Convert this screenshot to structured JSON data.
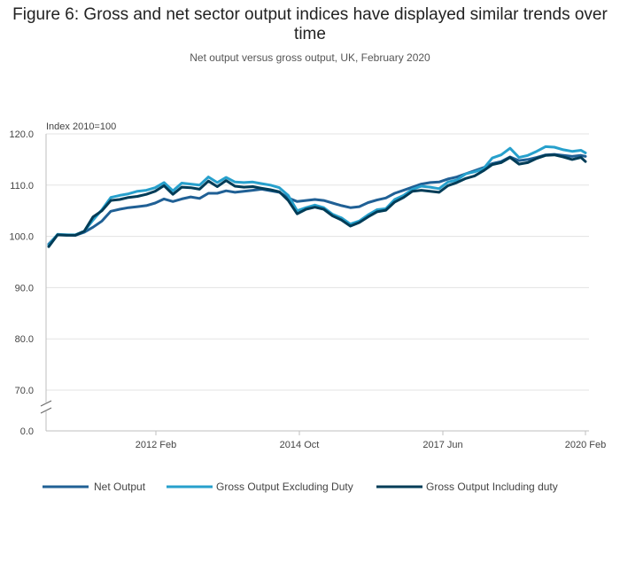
{
  "title": "Figure 6: Gross and net sector output indices have displayed similar trends over time",
  "subtitle": "Net output versus gross output, UK, February 2020",
  "chart_data": {
    "type": "line",
    "ylabel": "Index 2010=100",
    "ylim": [
      0,
      120
    ],
    "y_ticks": [
      "120.0",
      "110.0",
      "100.0",
      "90.0",
      "80.0",
      "70.0",
      "0.0"
    ],
    "y_axis_break": true,
    "x_ticks": [
      "2012 Feb",
      "2014 Oct",
      "2017 Jun",
      "2020 Feb"
    ],
    "grid": true,
    "legend_position": "bottom",
    "series": [
      {
        "name": "Net Output",
        "color": "#206095",
        "values": [
          [
            0,
            98.5
          ],
          [
            2,
            100.3
          ],
          [
            4,
            100.3
          ],
          [
            6,
            100.2
          ],
          [
            8,
            100.8
          ],
          [
            10,
            101.8
          ],
          [
            12,
            103.0
          ],
          [
            14,
            104.9
          ],
          [
            16,
            105.3
          ],
          [
            18,
            105.6
          ],
          [
            20,
            105.8
          ],
          [
            22,
            106.0
          ],
          [
            24,
            106.5
          ],
          [
            26,
            107.3
          ],
          [
            28,
            106.8
          ],
          [
            30,
            107.3
          ],
          [
            32,
            107.7
          ],
          [
            34,
            107.4
          ],
          [
            36,
            108.4
          ],
          [
            38,
            108.4
          ],
          [
            40,
            108.9
          ],
          [
            42,
            108.6
          ],
          [
            44,
            108.8
          ],
          [
            46,
            109.0
          ],
          [
            48,
            109.2
          ],
          [
            50,
            108.9
          ],
          [
            52,
            108.6
          ],
          [
            54,
            107.5
          ],
          [
            56,
            106.8
          ],
          [
            58,
            107.0
          ],
          [
            60,
            107.2
          ],
          [
            62,
            107.0
          ],
          [
            64,
            106.5
          ],
          [
            66,
            106.0
          ],
          [
            68,
            105.6
          ],
          [
            70,
            105.8
          ],
          [
            72,
            106.6
          ],
          [
            74,
            107.1
          ],
          [
            76,
            107.5
          ],
          [
            78,
            108.4
          ],
          [
            80,
            109.0
          ],
          [
            82,
            109.6
          ],
          [
            84,
            110.2
          ],
          [
            86,
            110.5
          ],
          [
            88,
            110.6
          ],
          [
            90,
            111.2
          ],
          [
            92,
            111.6
          ],
          [
            94,
            112.2
          ],
          [
            96,
            112.8
          ],
          [
            98,
            113.4
          ],
          [
            100,
            114.2
          ],
          [
            102,
            114.6
          ],
          [
            104,
            115.5
          ],
          [
            106,
            114.8
          ],
          [
            108,
            115.0
          ],
          [
            110,
            115.4
          ],
          [
            112,
            115.9
          ],
          [
            114,
            116.0
          ],
          [
            116,
            115.8
          ],
          [
            118,
            115.6
          ],
          [
            120,
            115.8
          ],
          [
            121,
            115.6
          ]
        ]
      },
      {
        "name": "Gross Output Excluding Duty",
        "color": "#27A0CC",
        "values": [
          [
            0,
            98.3
          ],
          [
            2,
            100.4
          ],
          [
            4,
            100.3
          ],
          [
            6,
            100.3
          ],
          [
            8,
            101.0
          ],
          [
            10,
            103.2
          ],
          [
            12,
            105.2
          ],
          [
            14,
            107.6
          ],
          [
            16,
            108.0
          ],
          [
            18,
            108.3
          ],
          [
            20,
            108.8
          ],
          [
            22,
            109.0
          ],
          [
            24,
            109.5
          ],
          [
            26,
            110.5
          ],
          [
            28,
            108.9
          ],
          [
            30,
            110.4
          ],
          [
            32,
            110.2
          ],
          [
            34,
            110.0
          ],
          [
            36,
            111.6
          ],
          [
            38,
            110.5
          ],
          [
            40,
            111.5
          ],
          [
            42,
            110.6
          ],
          [
            44,
            110.5
          ],
          [
            46,
            110.6
          ],
          [
            48,
            110.3
          ],
          [
            50,
            110.0
          ],
          [
            52,
            109.5
          ],
          [
            54,
            108.0
          ],
          [
            56,
            105.0
          ],
          [
            58,
            105.6
          ],
          [
            60,
            106.1
          ],
          [
            62,
            105.6
          ],
          [
            64,
            104.3
          ],
          [
            66,
            103.6
          ],
          [
            68,
            102.4
          ],
          [
            70,
            103.0
          ],
          [
            72,
            104.2
          ],
          [
            74,
            105.2
          ],
          [
            76,
            105.4
          ],
          [
            78,
            107.2
          ],
          [
            80,
            108.0
          ],
          [
            82,
            109.2
          ],
          [
            84,
            109.8
          ],
          [
            86,
            109.6
          ],
          [
            88,
            109.3
          ],
          [
            90,
            110.6
          ],
          [
            92,
            111.0
          ],
          [
            94,
            112.2
          ],
          [
            96,
            112.6
          ],
          [
            98,
            113.2
          ],
          [
            100,
            115.3
          ],
          [
            102,
            115.9
          ],
          [
            104,
            117.2
          ],
          [
            106,
            115.4
          ],
          [
            108,
            115.8
          ],
          [
            110,
            116.6
          ],
          [
            112,
            117.5
          ],
          [
            114,
            117.4
          ],
          [
            116,
            116.9
          ],
          [
            118,
            116.6
          ],
          [
            120,
            116.8
          ],
          [
            121,
            116.3
          ]
        ]
      },
      {
        "name": "Gross Output Including duty",
        "color": "#003C57",
        "values": [
          [
            0,
            98.0
          ],
          [
            2,
            100.3
          ],
          [
            4,
            100.2
          ],
          [
            6,
            100.2
          ],
          [
            8,
            101.0
          ],
          [
            10,
            103.8
          ],
          [
            12,
            105.0
          ],
          [
            14,
            107.0
          ],
          [
            16,
            107.2
          ],
          [
            18,
            107.6
          ],
          [
            20,
            107.8
          ],
          [
            22,
            108.2
          ],
          [
            24,
            108.8
          ],
          [
            26,
            109.9
          ],
          [
            28,
            108.2
          ],
          [
            30,
            109.6
          ],
          [
            32,
            109.5
          ],
          [
            34,
            109.2
          ],
          [
            36,
            110.8
          ],
          [
            38,
            109.7
          ],
          [
            40,
            110.9
          ],
          [
            42,
            109.8
          ],
          [
            44,
            109.6
          ],
          [
            46,
            109.7
          ],
          [
            48,
            109.4
          ],
          [
            50,
            109.1
          ],
          [
            52,
            108.7
          ],
          [
            54,
            107.0
          ],
          [
            56,
            104.4
          ],
          [
            58,
            105.3
          ],
          [
            60,
            105.7
          ],
          [
            62,
            105.3
          ],
          [
            64,
            104.0
          ],
          [
            66,
            103.2
          ],
          [
            68,
            102.0
          ],
          [
            70,
            102.7
          ],
          [
            72,
            103.8
          ],
          [
            74,
            104.8
          ],
          [
            76,
            105.1
          ],
          [
            78,
            106.7
          ],
          [
            80,
            107.6
          ],
          [
            82,
            108.8
          ],
          [
            84,
            109.0
          ],
          [
            86,
            108.8
          ],
          [
            88,
            108.6
          ],
          [
            90,
            109.9
          ],
          [
            92,
            110.5
          ],
          [
            94,
            111.3
          ],
          [
            96,
            111.8
          ],
          [
            98,
            112.8
          ],
          [
            100,
            114.0
          ],
          [
            102,
            114.4
          ],
          [
            104,
            115.4
          ],
          [
            106,
            114.1
          ],
          [
            108,
            114.4
          ],
          [
            110,
            115.2
          ],
          [
            112,
            115.8
          ],
          [
            114,
            115.9
          ],
          [
            116,
            115.5
          ],
          [
            118,
            115.0
          ],
          [
            120,
            115.4
          ],
          [
            121,
            114.6
          ]
        ]
      }
    ]
  }
}
